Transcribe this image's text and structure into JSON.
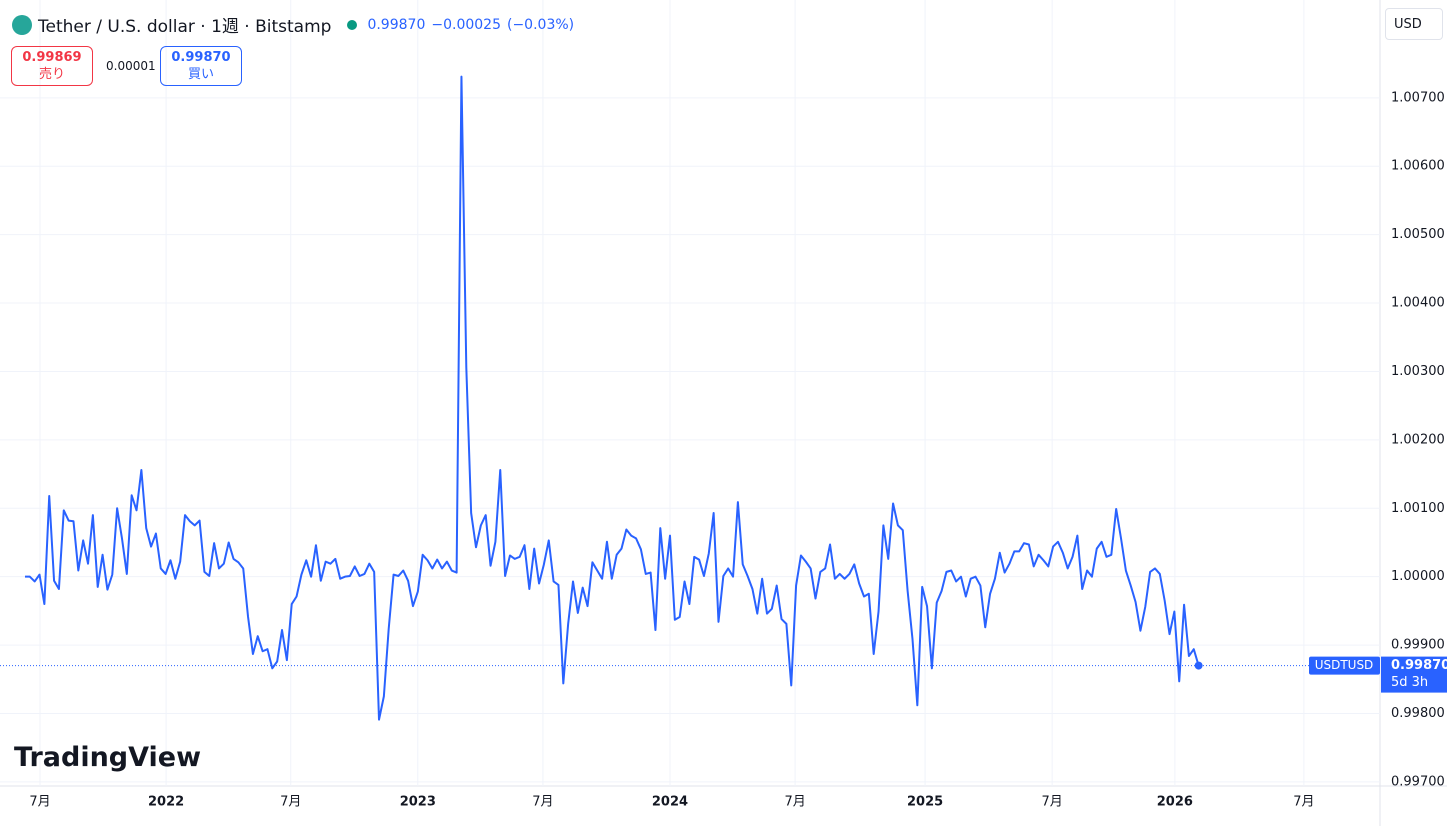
{
  "header": {
    "title": "Tether / U.S. dollar · 1週 · Bitstamp",
    "last": "0.99870",
    "change": "−0.00025",
    "change_pct": "(−0.03%)",
    "sell_price": "0.99869",
    "sell_label": "売り",
    "spread": "0.00001",
    "buy_price": "0.99870",
    "buy_label": "買い",
    "currency": "USD",
    "logo": "TradingView",
    "countdown": "5d 3h"
  },
  "chart_data": {
    "type": "line",
    "series": [
      {
        "name": "USDTUSD",
        "color": "#2962ff",
        "values": [
          1.0,
          1.0,
          0.99993,
          1.00003,
          0.9996,
          1.00118,
          0.99994,
          0.99982,
          1.00097,
          1.00082,
          1.00081,
          1.00009,
          1.00053,
          1.00019,
          1.0009,
          0.99985,
          1.00032,
          0.99981,
          1.00003,
          1.001,
          1.00056,
          1.00004,
          1.00119,
          1.00097,
          1.00156,
          1.00071,
          1.00044,
          1.00063,
          1.00012,
          1.00004,
          1.00024,
          0.99997,
          1.00022,
          1.0009,
          1.00081,
          1.00075,
          1.00082,
          1.00007,
          1.00001,
          1.00049,
          1.00012,
          1.00019,
          1.0005,
          1.00026,
          1.00021,
          1.00012,
          0.99941,
          0.99887,
          0.99913,
          0.99891,
          0.99894,
          0.99866,
          0.99876,
          0.99922,
          0.99878,
          0.9996,
          0.99971,
          1.00003,
          1.00024,
          1.0,
          1.00046,
          0.99994,
          1.00022,
          1.00019,
          1.00026,
          0.99997,
          1.0,
          1.00001,
          1.00015,
          1.00001,
          1.00004,
          1.00019,
          1.00007,
          0.99791,
          0.99825,
          0.99924,
          1.00003,
          1.00001,
          1.00009,
          0.99994,
          0.99957,
          0.99978,
          1.00032,
          1.00024,
          1.00012,
          1.00025,
          1.00012,
          1.00022,
          1.00009,
          1.00006,
          1.00731,
          1.00306,
          1.00093,
          1.00043,
          1.00075,
          1.0009,
          1.00016,
          1.00051,
          1.00156,
          1.00001,
          1.00031,
          1.00026,
          1.00029,
          1.00046,
          0.99982,
          1.00041,
          0.9999,
          1.00018,
          1.00053,
          0.99993,
          0.99988,
          0.99844,
          0.99931,
          0.99993,
          0.99947,
          0.99984,
          0.99957,
          1.00021,
          1.00009,
          0.99997,
          1.00051,
          0.99997,
          1.00032,
          1.00041,
          1.00069,
          1.0006,
          1.00056,
          1.0004,
          1.00004,
          1.00006,
          0.99922,
          1.00071,
          0.99997,
          1.0006,
          0.99937,
          0.99941,
          0.99993,
          0.9996,
          1.00029,
          1.00025,
          1.00001,
          1.00034,
          1.00093,
          0.99934,
          1.00001,
          1.00012,
          1.0,
          1.00109,
          1.00018,
          1.00001,
          0.99982,
          0.99946,
          0.99997,
          0.99946,
          0.99953,
          0.99987,
          0.99938,
          0.99931,
          0.99841,
          0.99987,
          1.00031,
          1.00022,
          1.00012,
          0.99968,
          1.00007,
          1.00012,
          1.00047,
          0.99997,
          1.00004,
          0.99997,
          1.00004,
          1.00018,
          0.9999,
          0.99971,
          0.99975,
          0.99887,
          0.99949,
          1.00075,
          1.00026,
          1.00107,
          1.00075,
          1.00068,
          0.99979,
          0.99909,
          0.99812,
          0.99985,
          0.99957,
          0.99866,
          0.99962,
          0.99979,
          1.00007,
          1.00009,
          0.99993,
          1.0,
          0.99971,
          0.99997,
          1.0,
          0.99987,
          0.99926,
          0.99975,
          0.99997,
          1.00035,
          1.00006,
          1.00019,
          1.00037,
          1.00037,
          1.00049,
          1.00047,
          1.00015,
          1.00032,
          1.00024,
          1.00015,
          1.00044,
          1.00051,
          1.00035,
          1.00012,
          1.00029,
          1.0006,
          0.99982,
          1.00009,
          1.0,
          1.00041,
          1.00051,
          1.00029,
          1.00032,
          1.00099,
          1.00056,
          1.00009,
          0.99987,
          0.99963,
          0.99921,
          0.99956,
          1.00007,
          1.00012,
          1.00004,
          0.99965,
          0.99916,
          0.99949,
          0.99847,
          0.99959,
          0.99884,
          0.99894,
          0.9987
        ]
      }
    ],
    "xlim": [
      -5.15,
      279.4
    ],
    "xticks": [
      {
        "value": 3.1,
        "label": "7月"
      },
      {
        "value": 29.1,
        "label": "2022"
      },
      {
        "value": 54.8,
        "label": "7月"
      },
      {
        "value": 81.0,
        "label": "2023"
      },
      {
        "value": 106.8,
        "label": "7月"
      },
      {
        "value": 133.0,
        "label": "2024"
      },
      {
        "value": 158.8,
        "label": "7月"
      },
      {
        "value": 185.6,
        "label": "2025"
      },
      {
        "value": 211.8,
        "label": "7月"
      },
      {
        "value": 237.1,
        "label": "2026"
      },
      {
        "value": 263.7,
        "label": "7月"
      }
    ],
    "ylim": [
      0.99694,
      1.00843
    ],
    "yticks": [
      {
        "value": 0.997,
        "label": "0.99700"
      },
      {
        "value": 0.998,
        "label": "0.99800"
      },
      {
        "value": 0.999,
        "label": "0.99900"
      },
      {
        "value": 1.0,
        "label": "1.00000"
      },
      {
        "value": 1.001,
        "label": "1.00100"
      },
      {
        "value": 1.002,
        "label": "1.00200"
      },
      {
        "value": 1.003,
        "label": "1.00300"
      },
      {
        "value": 1.004,
        "label": "1.00400"
      },
      {
        "value": 1.005,
        "label": "1.00500"
      },
      {
        "value": 1.006,
        "label": "1.00600"
      },
      {
        "value": 1.007,
        "label": "1.00700"
      }
    ],
    "grid": true
  }
}
